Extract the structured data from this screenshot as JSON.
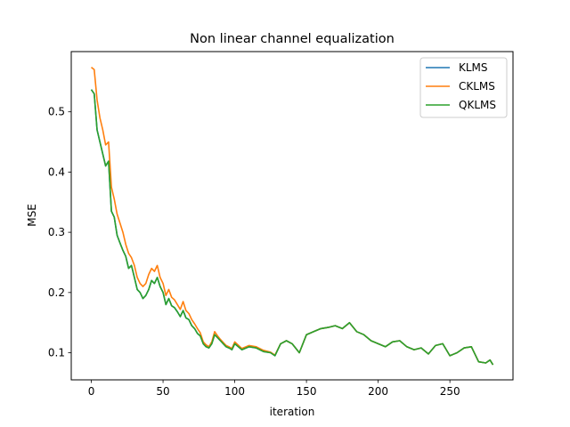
{
  "chart_data": {
    "type": "line",
    "title": "Non linear channel equalization",
    "xlabel": "iteration",
    "ylabel": "MSE",
    "xlim": [
      -14,
      294
    ],
    "ylim": [
      0.055,
      0.6
    ],
    "xticks": [
      0,
      50,
      100,
      150,
      200,
      250
    ],
    "yticks": [
      0.1,
      0.2,
      0.3,
      0.4,
      0.5
    ],
    "grid": false,
    "legend_position": "top-right",
    "series": [
      {
        "name": "KLMS",
        "color": "#1f77b4",
        "x": [
          0,
          2,
          4,
          6,
          8,
          10,
          12,
          14,
          16,
          18,
          20,
          22,
          24,
          26,
          28,
          30,
          32,
          34,
          36,
          38,
          40,
          42,
          44,
          46,
          48,
          50,
          52,
          54,
          56,
          58,
          60,
          62,
          64,
          66,
          68,
          70,
          72,
          74,
          76,
          78,
          80,
          82,
          84,
          86,
          88,
          90,
          92,
          94,
          96,
          98,
          100,
          105,
          110,
          115,
          120,
          125,
          128,
          132,
          136,
          140,
          145,
          150,
          155,
          160,
          165,
          170,
          175,
          180,
          185,
          190,
          195,
          200,
          205,
          210,
          215,
          220,
          225,
          230,
          235,
          240,
          245,
          250,
          255,
          260,
          265,
          270,
          275,
          278,
          280
        ],
        "y": [
          0.537,
          0.53,
          0.47,
          0.45,
          0.43,
          0.41,
          0.418,
          0.335,
          0.325,
          0.295,
          0.282,
          0.27,
          0.26,
          0.24,
          0.245,
          0.225,
          0.205,
          0.2,
          0.19,
          0.195,
          0.205,
          0.22,
          0.215,
          0.225,
          0.21,
          0.2,
          0.18,
          0.19,
          0.178,
          0.175,
          0.168,
          0.16,
          0.17,
          0.158,
          0.155,
          0.145,
          0.14,
          0.132,
          0.128,
          0.115,
          0.11,
          0.108,
          0.115,
          0.13,
          0.125,
          0.12,
          0.115,
          0.11,
          0.108,
          0.105,
          0.115,
          0.105,
          0.11,
          0.108,
          0.102,
          0.1,
          0.095,
          0.115,
          0.12,
          0.115,
          0.1,
          0.13,
          0.135,
          0.14,
          0.142,
          0.145,
          0.14,
          0.15,
          0.135,
          0.13,
          0.12,
          0.115,
          0.11,
          0.118,
          0.12,
          0.11,
          0.105,
          0.108,
          0.098,
          0.112,
          0.115,
          0.095,
          0.1,
          0.108,
          0.11,
          0.085,
          0.083,
          0.088,
          0.08
        ]
      },
      {
        "name": "CKLMS",
        "color": "#ff7f0e",
        "x": [
          0,
          2,
          4,
          6,
          8,
          10,
          12,
          14,
          16,
          18,
          20,
          22,
          24,
          26,
          28,
          30,
          32,
          34,
          36,
          38,
          40,
          42,
          44,
          46,
          48,
          50,
          52,
          54,
          56,
          58,
          60,
          62,
          64,
          66,
          68,
          70,
          72,
          74,
          76,
          78,
          80,
          82,
          84,
          86,
          88,
          90,
          92,
          94,
          96,
          98,
          100,
          105,
          110,
          115,
          120,
          125,
          128,
          132,
          136,
          140,
          145,
          150,
          155,
          160,
          165,
          170,
          175,
          180,
          185,
          190,
          195,
          200,
          205,
          210,
          215,
          220,
          225,
          230,
          235,
          240,
          245,
          250,
          255,
          260,
          265,
          270,
          275,
          278,
          280
        ],
        "y": [
          0.574,
          0.57,
          0.52,
          0.49,
          0.47,
          0.445,
          0.45,
          0.375,
          0.355,
          0.33,
          0.315,
          0.3,
          0.28,
          0.265,
          0.258,
          0.245,
          0.225,
          0.215,
          0.21,
          0.215,
          0.23,
          0.24,
          0.235,
          0.245,
          0.225,
          0.215,
          0.195,
          0.205,
          0.192,
          0.188,
          0.18,
          0.172,
          0.185,
          0.17,
          0.165,
          0.155,
          0.148,
          0.14,
          0.133,
          0.118,
          0.113,
          0.11,
          0.118,
          0.135,
          0.128,
          0.122,
          0.117,
          0.112,
          0.11,
          0.107,
          0.118,
          0.107,
          0.112,
          0.11,
          0.104,
          0.101,
          0.096,
          0.115,
          0.12,
          0.115,
          0.1,
          0.13,
          0.135,
          0.14,
          0.142,
          0.145,
          0.14,
          0.15,
          0.135,
          0.13,
          0.12,
          0.115,
          0.11,
          0.118,
          0.12,
          0.11,
          0.105,
          0.108,
          0.098,
          0.112,
          0.115,
          0.095,
          0.1,
          0.108,
          0.11,
          0.085,
          0.083,
          0.088,
          0.08
        ]
      },
      {
        "name": "QKLMS",
        "color": "#2ca02c",
        "x": [
          0,
          2,
          4,
          6,
          8,
          10,
          12,
          14,
          16,
          18,
          20,
          22,
          24,
          26,
          28,
          30,
          32,
          34,
          36,
          38,
          40,
          42,
          44,
          46,
          48,
          50,
          52,
          54,
          56,
          58,
          60,
          62,
          64,
          66,
          68,
          70,
          72,
          74,
          76,
          78,
          80,
          82,
          84,
          86,
          88,
          90,
          92,
          94,
          96,
          98,
          100,
          105,
          110,
          115,
          120,
          125,
          128,
          132,
          136,
          140,
          145,
          150,
          155,
          160,
          165,
          170,
          175,
          180,
          185,
          190,
          195,
          200,
          205,
          210,
          215,
          220,
          225,
          230,
          235,
          240,
          245,
          250,
          255,
          260,
          265,
          270,
          275,
          278,
          280
        ],
        "y": [
          0.537,
          0.53,
          0.47,
          0.45,
          0.43,
          0.41,
          0.418,
          0.335,
          0.325,
          0.295,
          0.282,
          0.27,
          0.26,
          0.24,
          0.245,
          0.225,
          0.205,
          0.2,
          0.19,
          0.195,
          0.205,
          0.22,
          0.215,
          0.225,
          0.21,
          0.2,
          0.18,
          0.19,
          0.178,
          0.175,
          0.168,
          0.16,
          0.17,
          0.158,
          0.155,
          0.145,
          0.14,
          0.132,
          0.128,
          0.115,
          0.11,
          0.108,
          0.115,
          0.13,
          0.125,
          0.12,
          0.115,
          0.11,
          0.108,
          0.105,
          0.115,
          0.105,
          0.11,
          0.108,
          0.102,
          0.1,
          0.095,
          0.115,
          0.12,
          0.115,
          0.1,
          0.13,
          0.135,
          0.14,
          0.142,
          0.145,
          0.14,
          0.15,
          0.135,
          0.13,
          0.12,
          0.115,
          0.11,
          0.118,
          0.12,
          0.11,
          0.105,
          0.108,
          0.098,
          0.112,
          0.115,
          0.095,
          0.1,
          0.108,
          0.11,
          0.085,
          0.083,
          0.088,
          0.08
        ]
      }
    ]
  }
}
